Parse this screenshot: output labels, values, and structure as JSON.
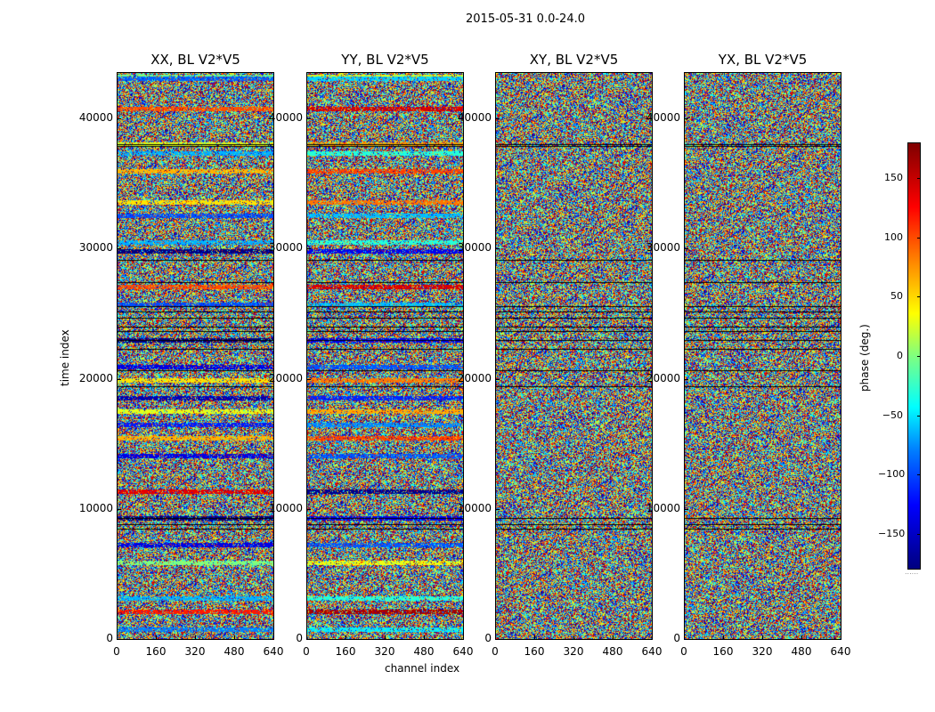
{
  "figure": {
    "suptitle": "2015-05-31 0.0-24.0"
  },
  "chart_data": [
    {
      "type": "heatmap",
      "title": "XX, BL V2*V5",
      "xlabel": "channel index",
      "ylabel": "time index",
      "xlim": [
        0,
        640
      ],
      "ylim": [
        0,
        43500
      ],
      "x_ticks": [
        "0",
        "160",
        "320",
        "480",
        "640"
      ],
      "y_ticks": [
        "0",
        "10000",
        "20000",
        "30000",
        "40000"
      ]
    },
    {
      "type": "heatmap",
      "title": "YY, BL V2*V5",
      "xlabel": "",
      "ylabel": "",
      "xlim": [
        0,
        640
      ],
      "ylim": [
        0,
        43500
      ],
      "x_ticks": [
        "0",
        "160",
        "320",
        "480",
        "640"
      ],
      "y_ticks": [
        "0",
        "10000",
        "20000",
        "30000",
        "40000"
      ]
    },
    {
      "type": "heatmap",
      "title": "XY, BL V2*V5",
      "xlabel": "",
      "ylabel": "",
      "xlim": [
        0,
        640
      ],
      "ylim": [
        0,
        43500
      ],
      "x_ticks": [
        "0",
        "160",
        "320",
        "480",
        "640"
      ],
      "y_ticks": [
        "0",
        "10000",
        "20000",
        "30000",
        "40000"
      ]
    },
    {
      "type": "heatmap",
      "title": "YX, BL V2*V5",
      "xlabel": "",
      "ylabel": "",
      "xlim": [
        0,
        640
      ],
      "ylim": [
        0,
        43500
      ],
      "x_ticks": [
        "0",
        "160",
        "320",
        "480",
        "640"
      ],
      "y_ticks": [
        "0",
        "10000",
        "20000",
        "30000",
        "40000"
      ]
    }
  ],
  "shared_xlabel": "channel index",
  "shared_ylabel": "time index",
  "colorbar": {
    "label": "phase (deg.)",
    "range": [
      -180,
      180
    ],
    "colormap": "jet",
    "ticks": [
      "150",
      "100",
      "50",
      "0",
      "−50",
      "−100",
      "−150"
    ],
    "tick_values": [
      150,
      100,
      50,
      0,
      -50,
      -100,
      -150
    ],
    "footer": "......"
  }
}
